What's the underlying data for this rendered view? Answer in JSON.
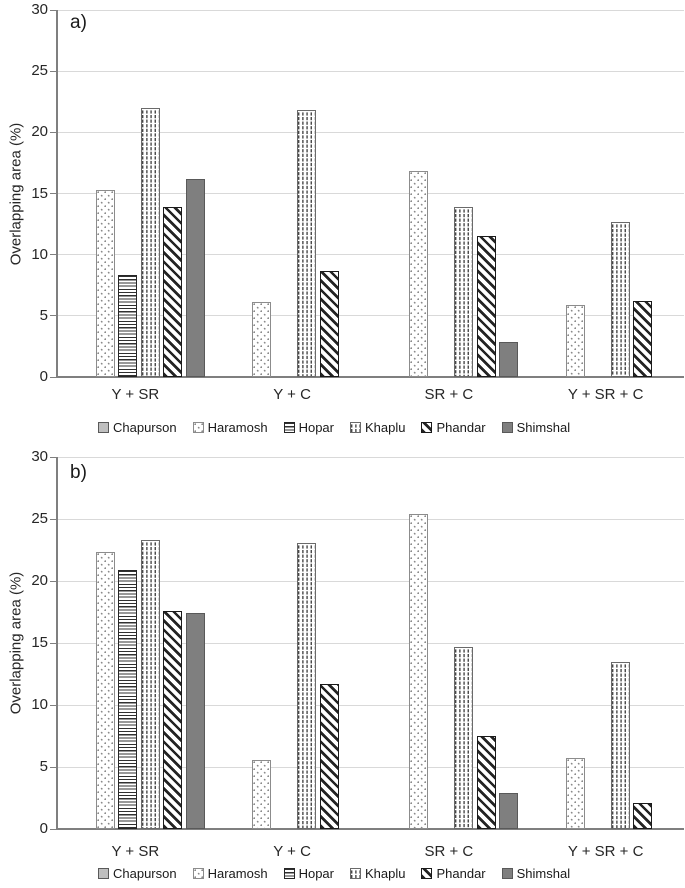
{
  "styles": {
    "background": "#ffffff",
    "grid_color": "#d9d9d9",
    "axis_color": "#7f7f7f",
    "text_color": "#262626",
    "chapurson_fill": "#bfbfbf",
    "shimshal_fill": "#7f7f7f"
  },
  "chart_data": [
    {
      "type": "bar",
      "panel": "a)",
      "ylabel": "Overlapping area (%)",
      "ylim": [
        0,
        30
      ],
      "y_ticks": [
        0,
        5,
        10,
        15,
        20,
        25,
        30
      ],
      "grid": true,
      "legend_position": "bottom",
      "categories": [
        "Y + SR",
        "Y + C",
        "SR + C",
        "Y + SR + C"
      ],
      "series": [
        {
          "name": "Chapurson",
          "pattern": "light-gray-solid",
          "values": [
            0,
            0,
            0,
            0
          ]
        },
        {
          "name": "Haramosh",
          "pattern": "sparse-dots",
          "values": [
            15.3,
            6.1,
            16.8,
            5.9
          ]
        },
        {
          "name": "Hopar",
          "pattern": "horizontal-lines",
          "values": [
            8.3,
            0,
            0,
            0
          ]
        },
        {
          "name": "Khaplu",
          "pattern": "dense-dots",
          "values": [
            22.0,
            21.8,
            13.9,
            12.7
          ]
        },
        {
          "name": "Phandar",
          "pattern": "diagonal-stripes",
          "values": [
            13.9,
            8.7,
            11.5,
            6.2
          ]
        },
        {
          "name": "Shimshal",
          "pattern": "dark-gray-solid",
          "values": [
            16.2,
            0,
            2.9,
            0
          ]
        }
      ]
    },
    {
      "type": "bar",
      "panel": "b)",
      "ylabel": "Overlapping area (%)",
      "ylim": [
        0,
        30
      ],
      "y_ticks": [
        0,
        5,
        10,
        15,
        20,
        25,
        30
      ],
      "grid": true,
      "legend_position": "bottom",
      "categories": [
        "Y + SR",
        "Y + C",
        "SR + C",
        "Y + SR + C"
      ],
      "series": [
        {
          "name": "Chapurson",
          "pattern": "light-gray-solid",
          "values": [
            0,
            0,
            0,
            0
          ]
        },
        {
          "name": "Haramosh",
          "pattern": "sparse-dots",
          "values": [
            22.3,
            5.6,
            25.4,
            5.7
          ]
        },
        {
          "name": "Hopar",
          "pattern": "horizontal-lines",
          "values": [
            20.9,
            0,
            0,
            0
          ]
        },
        {
          "name": "Khaplu",
          "pattern": "dense-dots",
          "values": [
            23.3,
            23.1,
            14.7,
            13.5
          ]
        },
        {
          "name": "Phandar",
          "pattern": "diagonal-stripes",
          "values": [
            17.6,
            11.7,
            7.5,
            2.1
          ]
        },
        {
          "name": "Shimshal",
          "pattern": "dark-gray-solid",
          "values": [
            17.4,
            0,
            2.9,
            0
          ]
        }
      ]
    }
  ]
}
